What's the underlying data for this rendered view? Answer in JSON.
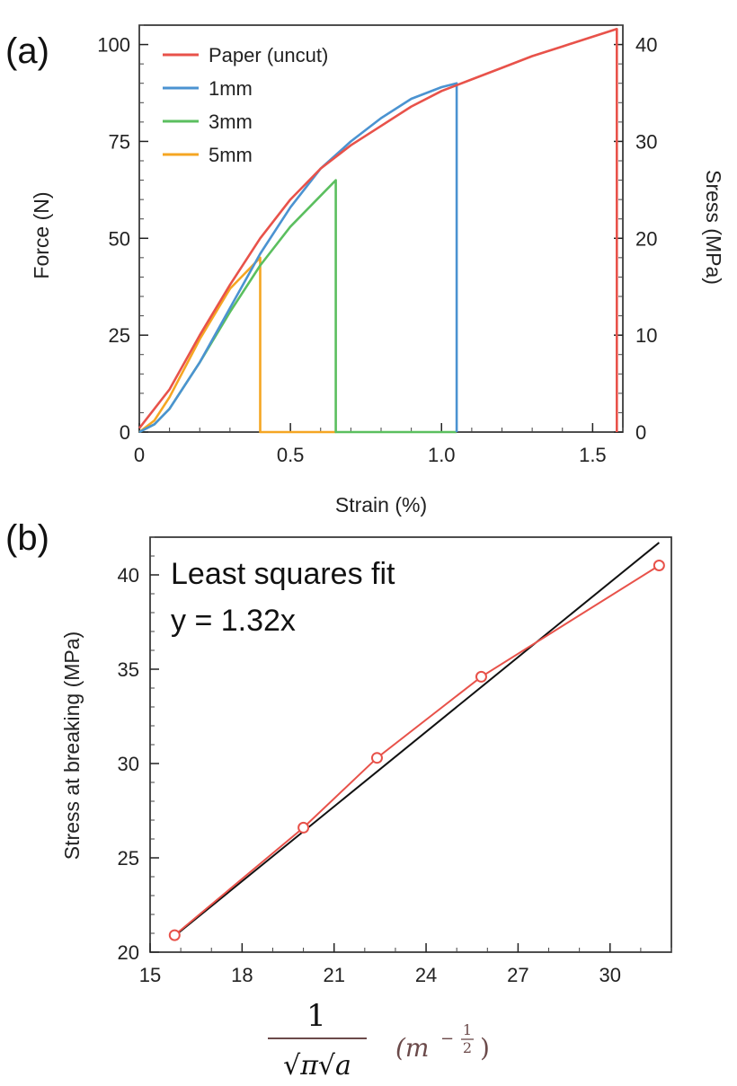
{
  "chart_data": [
    {
      "panel_label": "(a)",
      "type": "line",
      "xlabel": "Strain (%)",
      "ylabel": "Force (N)",
      "ylabel_right": "Sress (MPa)",
      "xlim": [
        0,
        1.6
      ],
      "ylim": [
        0,
        105
      ],
      "ylim_right": [
        0,
        42
      ],
      "xticks": [
        "0",
        "0.5",
        "1.0",
        "1.5"
      ],
      "xtick_values": [
        0,
        0.5,
        1.0,
        1.5
      ],
      "yticks": [
        "0",
        "25",
        "50",
        "75",
        "100"
      ],
      "ytick_values": [
        0,
        25,
        50,
        75,
        100
      ],
      "yticks_right": [
        "0",
        "10",
        "20",
        "30",
        "40"
      ],
      "ytick_right_values": [
        0,
        10,
        20,
        30,
        40
      ],
      "legend_position": "top-left",
      "grid": false,
      "series": [
        {
          "name": "Paper (uncut)",
          "color": "#e8524a",
          "x": [
            0,
            0.1,
            0.2,
            0.3,
            0.4,
            0.5,
            0.6,
            0.7,
            0.8,
            0.9,
            1.0,
            1.1,
            1.2,
            1.3,
            1.4,
            1.5,
            1.58,
            1.58
          ],
          "y": [
            1,
            11,
            25,
            38,
            50,
            60,
            68,
            74,
            79,
            84,
            88,
            91,
            94,
            97,
            99.5,
            102,
            104,
            0
          ]
        },
        {
          "name": "1mm",
          "color": "#4b93d1",
          "x": [
            0,
            0.05,
            0.1,
            0.2,
            0.3,
            0.4,
            0.5,
            0.6,
            0.7,
            0.8,
            0.9,
            1.0,
            1.05,
            1.05
          ],
          "y": [
            0,
            2,
            6,
            18,
            32,
            46,
            58,
            68,
            75,
            81,
            86,
            89,
            90,
            0
          ]
        },
        {
          "name": "3mm",
          "color": "#5bbf5f",
          "x": [
            0,
            0.05,
            0.1,
            0.2,
            0.3,
            0.4,
            0.5,
            0.6,
            0.65,
            0.65,
            1.05
          ],
          "y": [
            0,
            2,
            6,
            18,
            31,
            43,
            53,
            61,
            65,
            0,
            0
          ]
        },
        {
          "name": "5mm",
          "color": "#f5a623",
          "x": [
            0,
            0.05,
            0.1,
            0.2,
            0.3,
            0.4,
            0.4,
            0.65
          ],
          "y": [
            0,
            3,
            9,
            24,
            37,
            45,
            0,
            0
          ]
        }
      ]
    },
    {
      "panel_label": "(b)",
      "type": "scatter",
      "xlabel_numerator": "1",
      "xlabel_denominator": "√π√a",
      "xlabel_unit": "(m",
      "xlabel_unit_exp_sign": "−",
      "xlabel_unit_exp_num": "1",
      "xlabel_unit_exp_den": "2",
      "xlabel_unit_close": ")",
      "ylabel": "Stress at breaking (MPa)",
      "xlim": [
        15,
        32
      ],
      "ylim": [
        20,
        42
      ],
      "xticks": [
        "15",
        "18",
        "21",
        "24",
        "27",
        "30"
      ],
      "xtick_values": [
        15,
        18,
        21,
        24,
        27,
        30
      ],
      "yticks": [
        "20",
        "25",
        "30",
        "35",
        "40"
      ],
      "ytick_values": [
        20,
        25,
        30,
        35,
        40
      ],
      "grid": false,
      "annotation_line1": "Least squares fit",
      "annotation_line2": "y = 1.32x",
      "series": [
        {
          "color": "#e8524a",
          "x": [
            15.8,
            20.0,
            22.4,
            25.8,
            31.6
          ],
          "y": [
            20.9,
            26.6,
            30.3,
            34.6,
            40.5
          ]
        }
      ],
      "fit": {
        "color": "#111111",
        "slope": 1.32,
        "x": [
          15.8,
          31.6
        ]
      }
    }
  ]
}
